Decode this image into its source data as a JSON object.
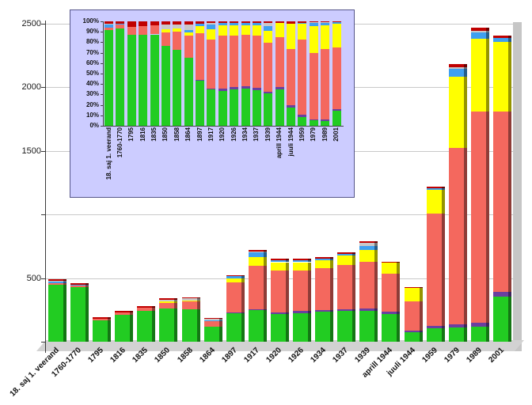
{
  "chart_data": {
    "type": "bar",
    "stacked": true,
    "title": "",
    "xlabel": "",
    "ylabel": "",
    "legend": "none",
    "categories": [
      "18. saj 1. veerand",
      "1760-1770",
      "1795",
      "1816",
      "1835",
      "1850",
      "1858",
      "1864",
      "1897",
      "1917",
      "1920",
      "1926",
      "1934",
      "1937",
      "1939",
      "aprill 1944",
      "juuli 1944",
      "1959",
      "1979",
      "1989",
      "2001"
    ],
    "series": [
      {
        "name": "green",
        "color": "#22cc22",
        "values": [
          450,
          430,
          165,
          210,
          245,
          260,
          255,
          120,
          225,
          250,
          215,
          225,
          235,
          240,
          245,
          220,
          75,
          105,
          110,
          120,
          355
        ]
      },
      {
        "name": "purple",
        "color": "#6a3fa0",
        "values": [
          0,
          0,
          0,
          0,
          0,
          0,
          0,
          0,
          5,
          5,
          15,
          15,
          15,
          15,
          15,
          15,
          10,
          20,
          25,
          30,
          35
        ]
      },
      {
        "name": "salmon-red",
        "color": "#f4685e",
        "values": [
          10,
          15,
          15,
          20,
          25,
          45,
          60,
          40,
          235,
          340,
          330,
          320,
          330,
          350,
          370,
          300,
          230,
          880,
          1390,
          1660,
          1420
        ]
      },
      {
        "name": "yellow",
        "color": "#ffff00",
        "values": [
          0,
          0,
          0,
          0,
          0,
          10,
          10,
          5,
          35,
          70,
          65,
          65,
          60,
          70,
          90,
          85,
          105,
          190,
          560,
          570,
          545
        ]
      },
      {
        "name": "blue",
        "color": "#3fa0f0",
        "values": [
          15,
          5,
          0,
          0,
          0,
          0,
          0,
          5,
          15,
          35,
          15,
          15,
          15,
          15,
          35,
          0,
          0,
          10,
          60,
          50,
          35
        ]
      },
      {
        "name": "gray",
        "color": "#c8c8c8",
        "values": [
          5,
          0,
          0,
          0,
          0,
          15,
          15,
          10,
          0,
          10,
          0,
          0,
          0,
          0,
          25,
          0,
          0,
          0,
          15,
          15,
          0
        ]
      },
      {
        "name": "dark-red",
        "color": "#c00000",
        "values": [
          10,
          10,
          10,
          10,
          10,
          10,
          10,
          5,
          10,
          10,
          10,
          10,
          10,
          10,
          10,
          10,
          10,
          15,
          20,
          25,
          15
        ]
      }
    ],
    "y_axis": {
      "min": 0,
      "max": 2500,
      "tick_step": 500,
      "ticks": [
        {
          "value": 0,
          "label": ""
        },
        {
          "value": 500,
          "label": "500"
        },
        {
          "value": 1000,
          "label": ""
        },
        {
          "value": 1500,
          "label": "1500"
        },
        {
          "value": 2000,
          "label": "2000"
        },
        {
          "value": 2500,
          "label": "2500"
        }
      ]
    },
    "inset": {
      "type": "bar",
      "stacked": true,
      "normalized_percent": true,
      "background": "#ccccff",
      "y_tick_labels": [
        "100%",
        "90%",
        "80%",
        "70%",
        "60%",
        "50%",
        "40%",
        "30%",
        "20%",
        "10%",
        "0%"
      ],
      "categories_same_as_main": true
    }
  }
}
